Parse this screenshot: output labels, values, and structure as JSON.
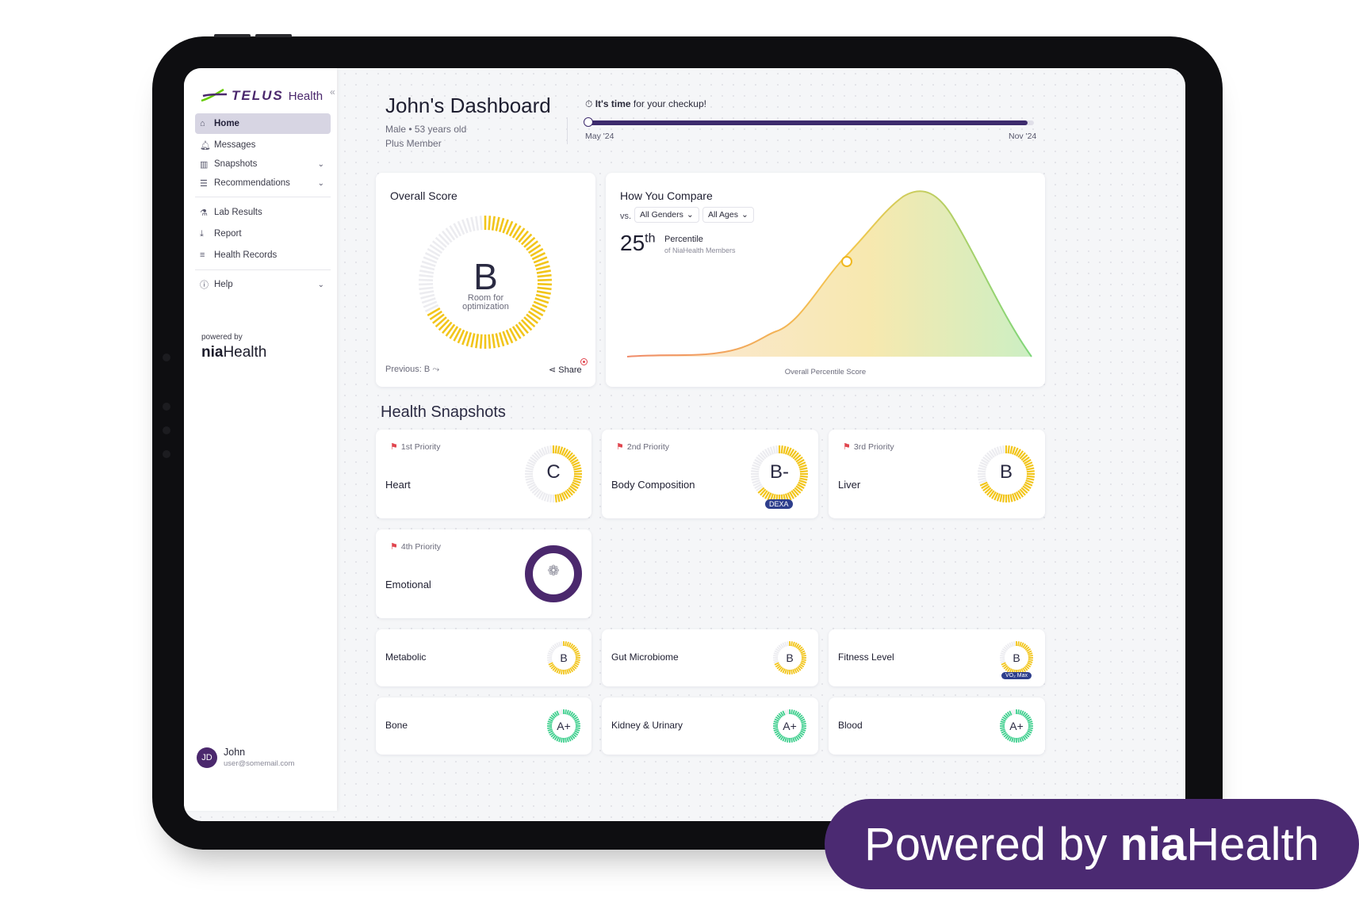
{
  "brand": {
    "logo_word": "TELUS",
    "logo_sub": "Health",
    "nia_prefix": "nia",
    "nia_suffix": "Health",
    "powered_by_small": "powered by"
  },
  "sidebar": {
    "items": [
      {
        "label": "Home",
        "icon": "home-icon"
      },
      {
        "label": "Messages",
        "icon": "bell-icon"
      },
      {
        "label": "Snapshots",
        "icon": "bar-chart-icon"
      },
      {
        "label": "Recommendations",
        "icon": "list-icon"
      },
      {
        "label": "Lab Results",
        "icon": "flask-icon"
      },
      {
        "label": "Report",
        "icon": "download-icon"
      },
      {
        "label": "Health Records",
        "icon": "database-icon"
      },
      {
        "label": "Help",
        "icon": "info-icon"
      }
    ],
    "user": {
      "initials": "JD",
      "name": "John",
      "email": "user@somemail.com"
    }
  },
  "header": {
    "title": "John's Dashboard",
    "gender_age": "Male • 53 years old",
    "membership": "Plus Member",
    "checkup_bold": "It's time",
    "checkup_rest": " for your checkup!",
    "progress_fraction": 0.985,
    "date_start": "May '24",
    "date_end": "Nov '24"
  },
  "overall": {
    "title": "Overall Score",
    "grade": "B",
    "sub_line1": "Room for",
    "sub_line2": "optimization",
    "fill_fraction": 0.68,
    "previous": "Previous: B",
    "share": "Share"
  },
  "compare": {
    "title": "How You Compare",
    "vs": "vs.",
    "gender_filter": "All Genders",
    "age_filter": "All Ages",
    "percentile_value": "25",
    "percentile_suffix": "th",
    "percentile_label": "Percentile",
    "percentile_sub": "of NiaHealth Members",
    "x_axis_label": "Overall Percentile Score"
  },
  "snapshots": {
    "section_title": "Health Snapshots",
    "priority": [
      {
        "priority": "1st Priority",
        "name": "Heart",
        "grade": "C",
        "fill": 0.5,
        "color": "#f2c51b"
      },
      {
        "priority": "2nd Priority",
        "name": "Body Composition",
        "grade": "B-",
        "fill": 0.65,
        "color": "#f2c51b",
        "badge": "DEXA"
      },
      {
        "priority": "3rd Priority",
        "name": "Liver",
        "grade": "B",
        "fill": 0.7,
        "color": "#f2c51b"
      },
      {
        "priority": "4th Priority",
        "name": "Emotional",
        "fill": 1.0,
        "color": "#4b286d",
        "icon": "brain-icon"
      }
    ],
    "others": [
      {
        "name": "Metabolic",
        "grade": "B",
        "fill": 0.7,
        "color": "#f2c51b"
      },
      {
        "name": "Gut Microbiome",
        "grade": "B",
        "fill": 0.7,
        "color": "#f2c51b"
      },
      {
        "name": "Fitness Level",
        "grade": "B",
        "fill": 0.7,
        "color": "#f2c51b",
        "badge": "VO₂ Max"
      },
      {
        "name": "Bone",
        "grade": "A+",
        "fill": 0.95,
        "color": "#3fcf8e"
      },
      {
        "name": "Kidney & Urinary",
        "grade": "A+",
        "fill": 0.95,
        "color": "#3fcf8e"
      },
      {
        "name": "Blood",
        "grade": "A+",
        "fill": 0.95,
        "color": "#3fcf8e"
      }
    ]
  },
  "footer_banner": {
    "prefix": "Powered by ",
    "nia": "nia",
    "health": "Health"
  },
  "colors": {
    "brand_purple": "#4b286d",
    "banner": "#4b2a72",
    "score_yellow": "#f2c51b",
    "good_green": "#3fcf8e"
  }
}
